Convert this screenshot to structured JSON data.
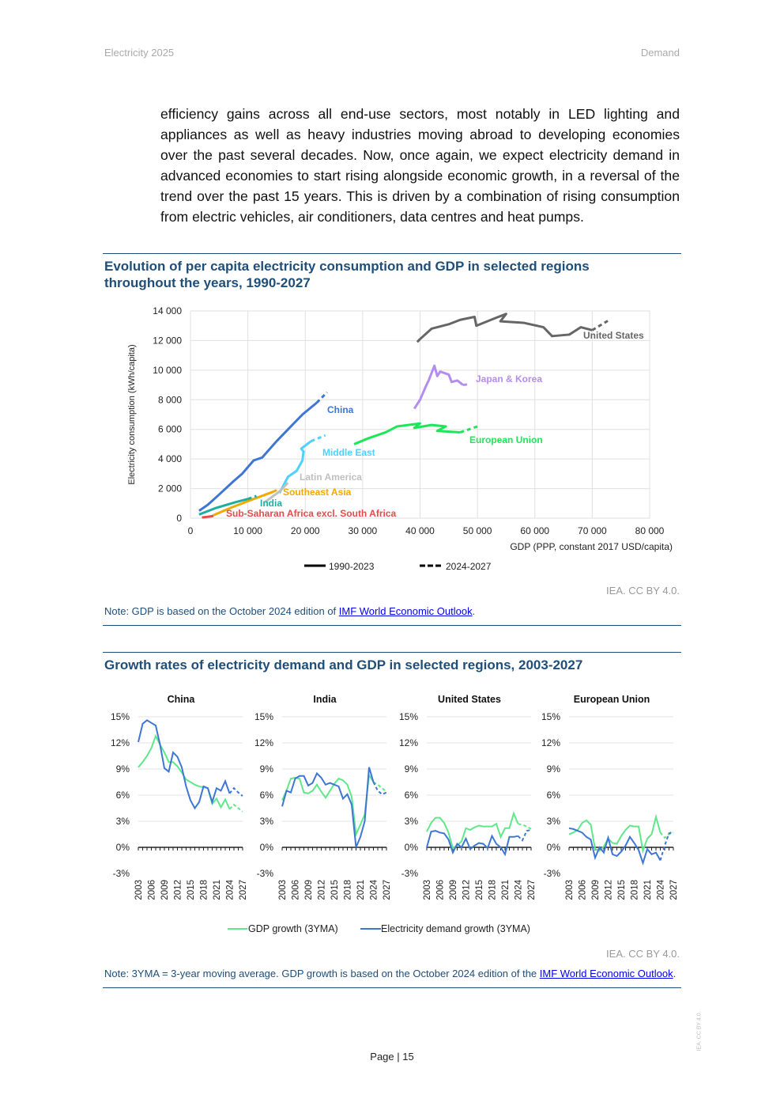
{
  "header": {
    "left": "Electricity 2025",
    "right": "Demand"
  },
  "paragraph": "efficiency gains across all end-use sectors, most notably in LED lighting and appliances as well as heavy industries moving abroad to developing economies over the past several decades. Now, once again, we expect electricity demand in advanced economies to start rising alongside economic growth, in a reversal of the trend over the past 15 years. This is driven by a combination of rising consumption from electric vehicles, air conditioners, data centres and heat pumps.",
  "figure1": {
    "title": "Evolution of per capita electricity consumption and GDP in selected regions throughout the years, 1990-2027",
    "credit": "IEA. CC BY 4.0.",
    "note_prefix": "Note: GDP is based on the October 2024 edition of ",
    "note_link": "IMF World Economic Outlook",
    "note_suffix": "."
  },
  "figure2": {
    "title": "Growth rates of electricity demand and GDP in selected regions, 2003-2027",
    "credit": "IEA. CC BY 4.0.",
    "note_prefix": "Note: 3YMA = 3-year moving average. GDP growth is based on the October 2024 edition of the ",
    "note_link": "IMF World Economic Outlook",
    "note_suffix": "."
  },
  "footer": {
    "page_label": "Page | 15",
    "side_credit": "IEA. CC BY 4.0."
  },
  "chart_data": [
    {
      "type": "line",
      "xlabel": "GDP (PPP, constant 2017 USD/capita)",
      "ylabel": "Electricity consumption (kWh/capita)",
      "xlim": [
        0,
        80000
      ],
      "ylim": [
        0,
        14000
      ],
      "xticks": [
        "0",
        "10 000",
        "20 000",
        "30 000",
        "40 000",
        "50 000",
        "60 000",
        "70 000",
        "80 000"
      ],
      "yticks": [
        "0",
        "2 000",
        "4 000",
        "6 000",
        "8 000",
        "10 000",
        "12 000",
        "14 000"
      ],
      "grid": true,
      "legend": [
        "1990-2023",
        "2024-2027"
      ],
      "legend_position": "bottom",
      "series": [
        {
          "name": "United States",
          "color": "#666666",
          "hist": [
            [
              39500,
              11900
            ],
            [
              40000,
              12100
            ],
            [
              42000,
              12800
            ],
            [
              45000,
              13100
            ],
            [
              47000,
              13400
            ],
            [
              49500,
              13600
            ],
            [
              49800,
              13000
            ],
            [
              53000,
              13500
            ],
            [
              55000,
              13800
            ],
            [
              54000,
              13300
            ],
            [
              58000,
              13200
            ],
            [
              61500,
              12900
            ],
            [
              63000,
              12300
            ],
            [
              66000,
              12400
            ],
            [
              68000,
              12900
            ],
            [
              70000,
              12700
            ]
          ],
          "proj": [
            [
              70000,
              12700
            ],
            [
              73000,
              13400
            ]
          ]
        },
        {
          "name": "Japan & Korea",
          "color": "#b38df0",
          "hist": [
            [
              39000,
              7400
            ],
            [
              40000,
              8000
            ],
            [
              41000,
              8900
            ],
            [
              41500,
              9300
            ],
            [
              42500,
              10300
            ],
            [
              43000,
              9600
            ],
            [
              43500,
              9900
            ],
            [
              45000,
              9700
            ],
            [
              45500,
              9200
            ],
            [
              46500,
              9300
            ],
            [
              47500,
              9000
            ]
          ],
          "proj": [
            [
              47500,
              9000
            ],
            [
              48500,
              9050
            ]
          ]
        },
        {
          "name": "China",
          "color": "#3f76d4",
          "hist": [
            [
              1500,
              500
            ],
            [
              3000,
              900
            ],
            [
              5000,
              1600
            ],
            [
              7500,
              2500
            ],
            [
              9000,
              3000
            ],
            [
              11000,
              3900
            ],
            [
              12500,
              4100
            ],
            [
              15000,
              5200
            ],
            [
              17000,
              6000
            ],
            [
              19500,
              7000
            ],
            [
              22000,
              7800
            ]
          ],
          "proj": [
            [
              22000,
              7800
            ],
            [
              23800,
              8500
            ]
          ]
        },
        {
          "name": "European Union",
          "color": "#1ee65a",
          "hist": [
            [
              28500,
              5000
            ],
            [
              31000,
              5400
            ],
            [
              34000,
              5800
            ],
            [
              36000,
              6200
            ],
            [
              40000,
              6400
            ],
            [
              39000,
              6100
            ],
            [
              42000,
              6300
            ],
            [
              44500,
              6200
            ],
            [
              43000,
              5900
            ],
            [
              47000,
              5800
            ]
          ],
          "proj": [
            [
              47000,
              5800
            ],
            [
              50000,
              6200
            ]
          ]
        },
        {
          "name": "Middle East",
          "color": "#4dd2ff",
          "hist": [
            [
              15500,
              1700
            ],
            [
              17000,
              2800
            ],
            [
              18500,
              3200
            ],
            [
              19500,
              3900
            ],
            [
              19700,
              4500
            ],
            [
              19300,
              4700
            ],
            [
              21000,
              5200
            ]
          ],
          "proj": [
            [
              21000,
              5200
            ],
            [
              23500,
              5600
            ]
          ]
        },
        {
          "name": "Latin America",
          "color": "#bfbfbf",
          "hist": [
            [
              13000,
              1100
            ],
            [
              15500,
              1800
            ],
            [
              16500,
              2200
            ]
          ],
          "proj": [
            [
              16500,
              2200
            ],
            [
              17000,
              2400
            ]
          ]
        },
        {
          "name": "Southeast Asia",
          "color": "#f2a900",
          "hist": [
            [
              4000,
              200
            ],
            [
              7000,
              700
            ],
            [
              11000,
              1300
            ],
            [
              14500,
              1800
            ]
          ],
          "proj": [
            [
              14500,
              1800
            ],
            [
              15000,
              1900
            ]
          ]
        },
        {
          "name": "India",
          "color": "#1fad9f",
          "hist": [
            [
              1500,
              250
            ],
            [
              4500,
              700
            ],
            [
              8000,
              1100
            ],
            [
              10000,
              1300
            ]
          ],
          "proj": [
            [
              10000,
              1300
            ],
            [
              11500,
              1500
            ]
          ]
        },
        {
          "name": "Sub-Saharan Africa excl. South Africa",
          "color": "#e84a4a",
          "hist": [
            [
              2000,
              50
            ],
            [
              3500,
              120
            ]
          ],
          "proj": [
            [
              3500,
              120
            ],
            [
              4000,
              160
            ]
          ]
        }
      ]
    },
    {
      "type": "line",
      "ylim": [
        -3,
        15
      ],
      "yticks": [
        "-3%",
        "0%",
        "3%",
        "6%",
        "9%",
        "12%",
        "15%"
      ],
      "xticks": [
        "2003",
        "2006",
        "2009",
        "2012",
        "2015",
        "2018",
        "2021",
        "2024",
        "2027"
      ],
      "years": [
        2003,
        2027
      ],
      "projection_from": 2024,
      "legend": [
        {
          "name": "GDP growth (3YMA)",
          "color": "#5ee88a"
        },
        {
          "name": "Electricity demand growth (3YMA)",
          "color": "#3f76d4"
        }
      ],
      "panels": [
        {
          "title": "China",
          "gdp": [
            9.2,
            9.8,
            10.5,
            11.4,
            12.8,
            11.8,
            10.9,
            9.8,
            9.8,
            9.3,
            8.6,
            7.8,
            7.5,
            7.2,
            7.0,
            6.9,
            6.8,
            5.0,
            5.6,
            4.6,
            5.5,
            4.4,
            4.9,
            4.5,
            4.1
          ],
          "elec": [
            12.1,
            14.2,
            14.6,
            14.3,
            14.0,
            11.8,
            9.1,
            8.7,
            10.9,
            10.4,
            9.2,
            7.0,
            5.4,
            4.5,
            5.2,
            7.0,
            6.8,
            5.2,
            6.8,
            6.5,
            7.6,
            6.2,
            6.8,
            6.3,
            5.9
          ]
        },
        {
          "title": "India",
          "gdp": [
            5.4,
            6.5,
            7.9,
            8.0,
            7.9,
            6.3,
            6.2,
            6.5,
            7.2,
            6.4,
            5.7,
            6.5,
            7.3,
            7.9,
            7.7,
            7.2,
            5.8,
            1.5,
            2.6,
            3.8,
            8.3,
            7.5,
            7.2,
            6.8,
            6.4
          ],
          "elec": [
            4.7,
            6.5,
            6.3,
            7.9,
            8.2,
            8.2,
            7.1,
            7.4,
            8.5,
            8.0,
            7.2,
            7.4,
            7.2,
            7.0,
            5.6,
            6.1,
            4.9,
            0.0,
            1.2,
            3.0,
            9.2,
            7.5,
            6.5,
            6.1,
            6.3
          ]
        },
        {
          "title": "United States",
          "gdp": [
            1.8,
            2.8,
            3.4,
            3.4,
            2.8,
            1.7,
            -0.1,
            0.2,
            0.7,
            2.2,
            2.0,
            2.3,
            2.5,
            2.4,
            2.4,
            2.4,
            2.7,
            1.2,
            2.2,
            2.2,
            3.9,
            2.7,
            2.6,
            2.4,
            2.1
          ],
          "elec": [
            0.0,
            1.8,
            1.9,
            1.7,
            1.6,
            0.9,
            -0.6,
            0.4,
            0.0,
            1.0,
            -0.2,
            0.2,
            0.5,
            0.4,
            -0.1,
            1.3,
            0.4,
            0.0,
            -0.8,
            1.2,
            1.2,
            1.3,
            0.8,
            1.9,
            2.0
          ]
        },
        {
          "title": "European Union",
          "gdp": [
            1.5,
            1.7,
            2.0,
            2.8,
            3.1,
            2.6,
            -0.2,
            -0.4,
            0.1,
            1.0,
            0.5,
            0.4,
            1.3,
            2.0,
            2.5,
            2.4,
            2.4,
            -0.4,
            1.0,
            1.5,
            3.5,
            1.7,
            1.1,
            1.5,
            1.7
          ],
          "elec": [
            2.2,
            2.1,
            1.9,
            1.7,
            1.2,
            0.9,
            -1.2,
            0.0,
            -0.6,
            1.1,
            -0.8,
            -1.0,
            -0.5,
            0.2,
            1.2,
            0.5,
            -0.3,
            -1.8,
            -0.2,
            -0.8,
            -0.6,
            -1.5,
            0.2,
            1.6,
            1.8
          ]
        }
      ]
    }
  ]
}
